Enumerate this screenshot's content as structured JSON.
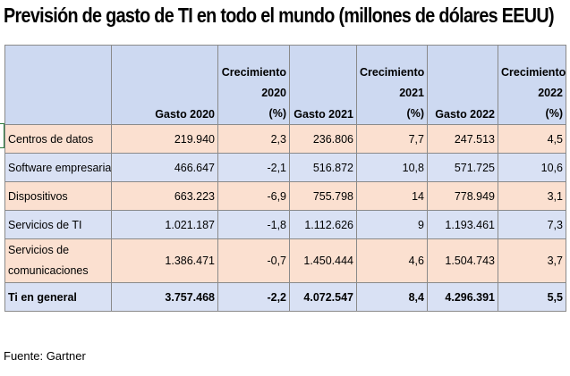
{
  "title": "Previsión de gasto de TI en todo el mundo (millones de dólares EEUU)",
  "table": {
    "headers": [
      "",
      "Gasto 2020",
      "Crecimiento 2020 (%)",
      "Gasto 2021",
      "Crecimiento 2021 (%)",
      "Gasto 2022",
      "Crecimiento 2022 (%)"
    ],
    "header_lines": {
      "g2020": "Gasto 2020",
      "c2020": [
        "Crecimiento",
        "2020",
        "(%)"
      ],
      "g2021": "Gasto 2021",
      "c2021": [
        "Crecimiento",
        "2021",
        "(%)"
      ],
      "g2022": "Gasto 2022",
      "c2022": [
        "Crecimiento",
        "2022",
        "(%)"
      ]
    },
    "rows": [
      {
        "label": "Centros de datos",
        "g2020": "219.940",
        "c2020": "2,3",
        "g2021": "236.806",
        "c2021": "7,7",
        "g2022": "247.513",
        "c2022": "4,5"
      },
      {
        "label": "Software empresarial",
        "g2020": "466.647",
        "c2020": "-2,1",
        "g2021": "516.872",
        "c2021": "10,8",
        "g2022": "571.725",
        "c2022": "10,6"
      },
      {
        "label": "Dispositivos",
        "g2020": "663.223",
        "c2020": "-6,9",
        "g2021": "755.798",
        "c2021": "14",
        "g2022": "778.949",
        "c2022": "3,1"
      },
      {
        "label": "Servicios de TI",
        "g2020": "1.021.187",
        "c2020": "-1,8",
        "g2021": "1.112.626",
        "c2021": "9",
        "g2022": "1.193.461",
        "c2022": "7,3"
      },
      {
        "label": "Servicios de comunicaciones",
        "g2020": "1.386.471",
        "c2020": "-0,7",
        "g2021": "1.450.444",
        "c2021": "4,6",
        "g2022": "1.504.743",
        "c2022": "3,7"
      },
      {
        "label": "Ti en general",
        "g2020": "3.757.468",
        "c2020": "-2,2",
        "g2021": "4.072.547",
        "c2021": "8,4",
        "g2022": "4.296.391",
        "c2022": "5,5"
      }
    ]
  },
  "source": "Fuente: Gartner",
  "colors": {
    "header_bg": "#cdd9f1",
    "row_peach": "#fbe0d0",
    "row_blue": "#d9e1f4",
    "grid": "#8a8a8a"
  }
}
